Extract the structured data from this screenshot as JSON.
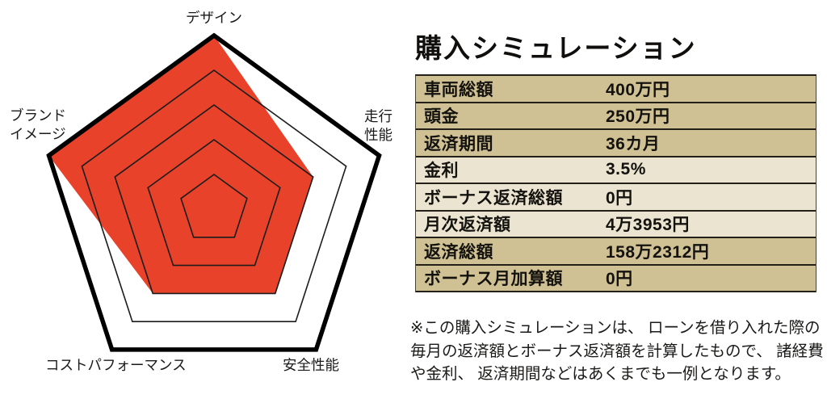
{
  "chart_data": {
    "type": "radar",
    "categories": [
      "デザイン",
      "走行性能",
      "安全性能",
      "コストパフォーマンス",
      "ブランドイメージ"
    ],
    "values": [
      5,
      3,
      3,
      3,
      5
    ],
    "scale": {
      "min": 0,
      "max": 5,
      "levels": 5
    },
    "axis_display_lines": [
      [
        "デザイン"
      ],
      [
        "走行",
        "性能"
      ],
      [
        "安全性能"
      ],
      [
        "コストパフォーマンス"
      ],
      [
        "ブランド",
        "イメージ"
      ]
    ],
    "fill_color": "#e8422a",
    "grid_color": "#1c1c1c",
    "outer_border_color": "#000000",
    "legend": "none",
    "grid": "concentric-pentagons"
  },
  "simulation": {
    "title": "購入シミュレーション",
    "rows": [
      {
        "label": "車両総額",
        "value": "400万円",
        "tone": "dark"
      },
      {
        "label": "頭金",
        "value": "250万円",
        "tone": "dark"
      },
      {
        "label": "返済期間",
        "value": "36カ月",
        "tone": "dark"
      },
      {
        "label": "金利",
        "value": "3.5%",
        "tone": "light"
      },
      {
        "label": "ボーナス返済総額",
        "value": "0円",
        "tone": "light"
      },
      {
        "label": "月次返済額",
        "value": "4万3953円",
        "tone": "light"
      },
      {
        "label": "返済総額",
        "value": "158万2312円",
        "tone": "dark"
      },
      {
        "label": "ボーナス月加算額",
        "value": "0円",
        "tone": "dark"
      }
    ],
    "row_colors": {
      "dark": "#cfc193",
      "light": "#eae4d1"
    },
    "footnote_lines": [
      "※この購入シミュレーションは、 ローンを借り入れた際の",
      "毎月の返済額とボーナス返済額を計算したもので、 諸経費",
      "や金利、 返済期間などはあくまでも一例となります。"
    ]
  }
}
